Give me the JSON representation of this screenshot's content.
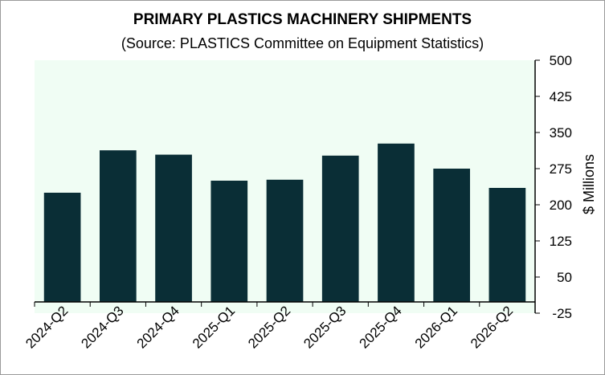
{
  "chart_data": {
    "type": "bar",
    "title": "PRIMARY PLASTICS MACHINERY SHIPMENTS",
    "subtitle": "(Source: PLASTICS Committee on Equipment Statistics)",
    "xlabel": "",
    "ylabel": "$ Millions",
    "categories": [
      "2024-Q2",
      "2024-Q3",
      "2024-Q4",
      "2025-Q1",
      "2025-Q2",
      "2025-Q3",
      "2025-Q4",
      "2026-Q1",
      "2026-Q2"
    ],
    "values": [
      225,
      313,
      304,
      250,
      252,
      302,
      327,
      275,
      235
    ],
    "ylim": [
      -25,
      500
    ],
    "yticks": [
      500,
      425,
      350,
      275,
      200,
      125,
      50,
      -25
    ],
    "ytick_labels": [
      "500",
      "425",
      "350",
      "275",
      "200",
      "125",
      "50",
      "-25"
    ],
    "y_axis_position": "right",
    "grid": false,
    "legend": "none",
    "colors": {
      "bar": "#0a2e36",
      "plot_background": "#f0fdf4",
      "axis": "#000000"
    }
  }
}
